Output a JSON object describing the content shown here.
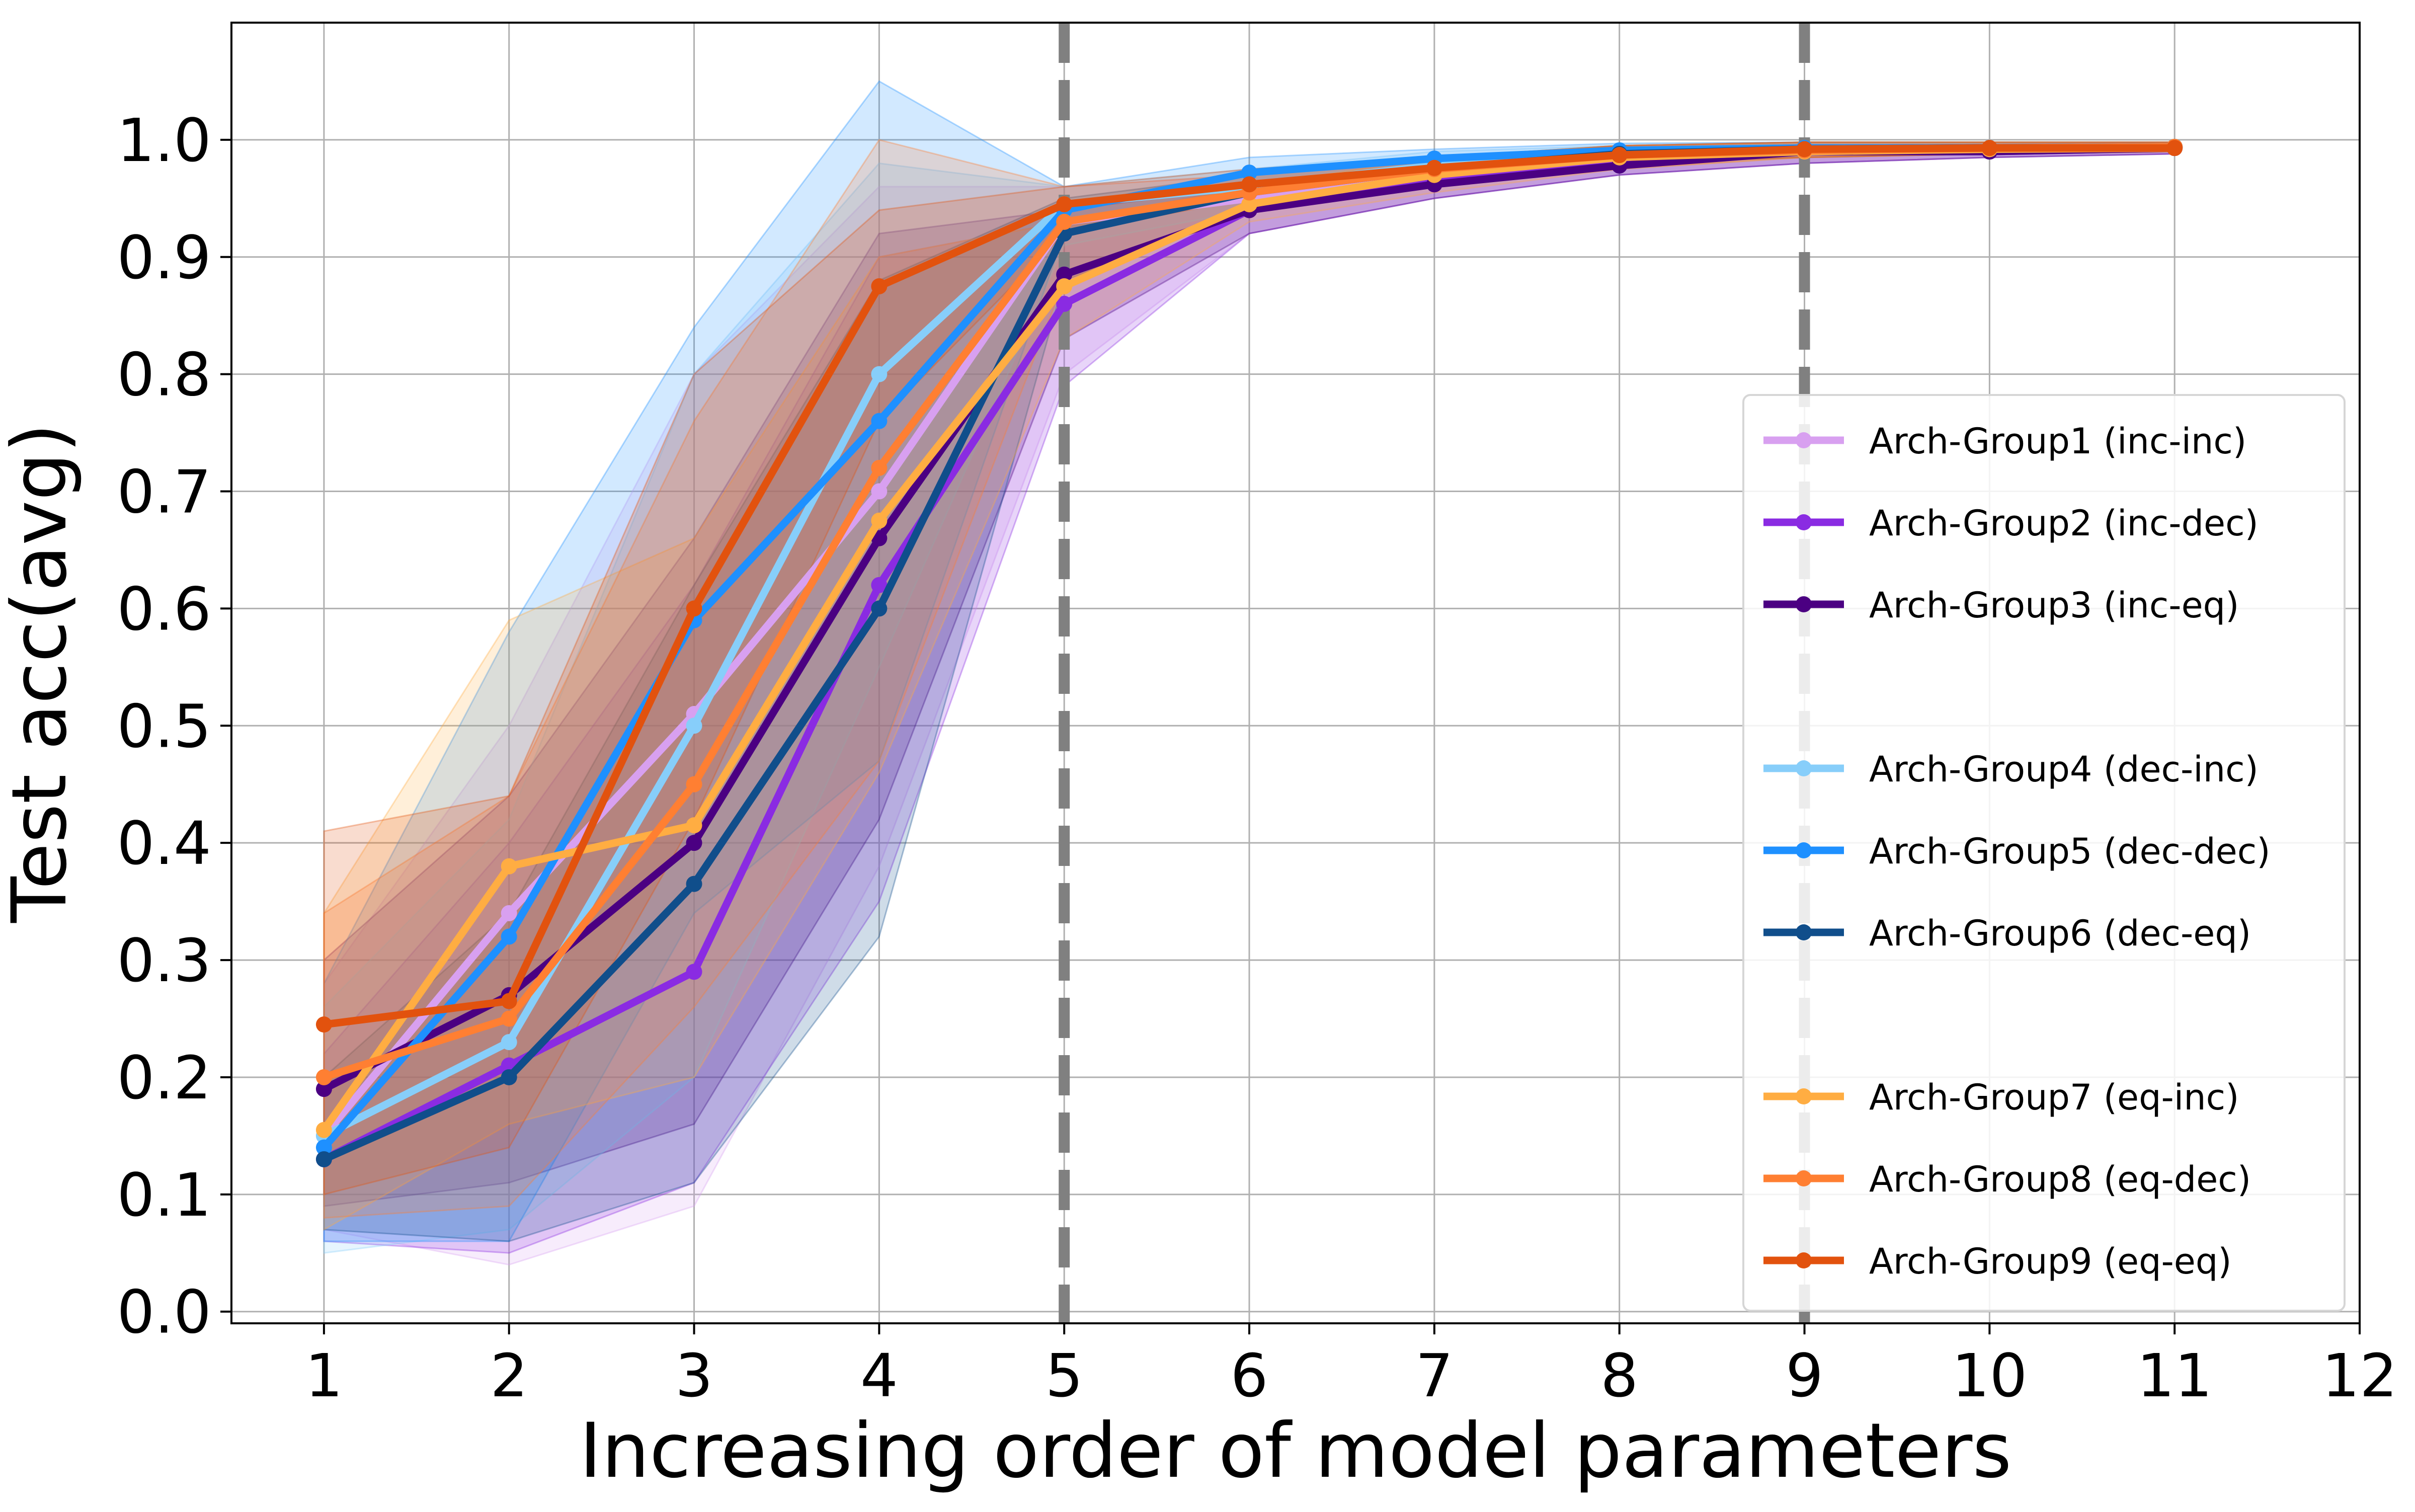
{
  "chart_data": {
    "type": "line",
    "title": "",
    "xlabel": "Increasing order of model parameters",
    "ylabel": "Test acc(avg)",
    "xlim": [
      0.5,
      12
    ],
    "ylim": [
      -0.01,
      1.1
    ],
    "xticks": [
      "1",
      "2",
      "3",
      "4",
      "5",
      "6",
      "7",
      "8",
      "9",
      "10",
      "11",
      "12"
    ],
    "yticks": [
      "0.0",
      "0.1",
      "0.2",
      "0.3",
      "0.4",
      "0.5",
      "0.6",
      "0.7",
      "0.8",
      "0.9",
      "1.0"
    ],
    "grid": true,
    "vlines": [
      5,
      9
    ],
    "legend_position": "center-right",
    "x": [
      1,
      2,
      3,
      4,
      5,
      6,
      7,
      8,
      9,
      10,
      11
    ],
    "series": [
      {
        "name": "Arch-Group1 (inc-inc)",
        "color": "#d8a0f0",
        "values": [
          0.15,
          0.34,
          0.51,
          0.7,
          0.93,
          0.95,
          0.97,
          0.985,
          0.99,
          0.992,
          0.993
        ],
        "band": [
          [
            0.07,
            0.28
          ],
          [
            0.04,
            0.5
          ],
          [
            0.09,
            0.8
          ],
          [
            0.38,
            0.96
          ],
          [
            0.8,
            0.96
          ],
          [
            0.92,
            0.97
          ],
          [
            0.95,
            0.98
          ],
          [
            0.97,
            0.995
          ],
          [
            0.98,
            0.998
          ],
          [
            0.985,
            0.998
          ],
          [
            0.988,
            0.998
          ]
        ]
      },
      {
        "name": "Arch-Group2 (inc-dec)",
        "color": "#8a2be2",
        "values": [
          0.13,
          0.21,
          0.29,
          0.62,
          0.86,
          0.94,
          0.965,
          0.98,
          0.99,
          0.99,
          0.993
        ],
        "band": [
          [
            0.06,
            0.22
          ],
          [
            0.05,
            0.4
          ],
          [
            0.11,
            0.62
          ],
          [
            0.35,
            0.9
          ],
          [
            0.79,
            0.93
          ],
          [
            0.92,
            0.96
          ],
          [
            0.95,
            0.98
          ],
          [
            0.97,
            0.99
          ],
          [
            0.98,
            0.995
          ],
          [
            0.985,
            0.996
          ],
          [
            0.988,
            0.997
          ]
        ]
      },
      {
        "name": "Arch-Group3 (inc-eq)",
        "color": "#4b0082",
        "values": [
          0.19,
          0.27,
          0.4,
          0.66,
          0.885,
          0.94,
          0.962,
          0.978,
          0.99,
          0.99,
          0.993
        ],
        "band": [
          [
            0.09,
            0.3
          ],
          [
            0.11,
            0.44
          ],
          [
            0.16,
            0.66
          ],
          [
            0.42,
            0.92
          ],
          [
            0.83,
            0.94
          ],
          [
            0.92,
            0.96
          ],
          [
            0.95,
            0.975
          ],
          [
            0.97,
            0.99
          ],
          [
            0.98,
            0.995
          ],
          [
            0.985,
            0.996
          ],
          [
            0.988,
            0.997
          ]
        ]
      },
      {
        "name": "Arch-Group4 (dec-inc)",
        "color": "#87cefa",
        "values": [
          0.15,
          0.23,
          0.5,
          0.8,
          0.945,
          0.96,
          0.978,
          0.988,
          0.992,
          0.993,
          0.994
        ],
        "band": [
          [
            0.05,
            0.26
          ],
          [
            0.07,
            0.42
          ],
          [
            0.2,
            0.8
          ],
          [
            0.55,
            0.98
          ],
          [
            0.91,
            0.96
          ],
          [
            0.94,
            0.975
          ],
          [
            0.96,
            0.99
          ],
          [
            0.975,
            0.995
          ],
          [
            0.985,
            0.998
          ],
          [
            0.988,
            0.998
          ],
          [
            0.99,
            0.998
          ]
        ]
      },
      {
        "name": "Arch-Group5 (dec-dec)",
        "color": "#1e90ff",
        "values": [
          0.14,
          0.32,
          0.59,
          0.76,
          0.94,
          0.972,
          0.984,
          0.991,
          0.993,
          0.993,
          0.994
        ],
        "band": [
          [
            0.06,
            0.28
          ],
          [
            0.06,
            0.58
          ],
          [
            0.34,
            0.84
          ],
          [
            0.47,
            1.05
          ],
          [
            0.92,
            0.96
          ],
          [
            0.96,
            0.985
          ],
          [
            0.975,
            0.992
          ],
          [
            0.985,
            0.997
          ],
          [
            0.988,
            0.998
          ],
          [
            0.99,
            0.998
          ],
          [
            0.99,
            0.998
          ]
        ]
      },
      {
        "name": "Arch-Group6 (dec-eq)",
        "color": "#104e8b",
        "values": [
          0.13,
          0.2,
          0.365,
          0.6,
          0.92,
          0.955,
          0.975,
          0.988,
          0.992,
          0.993,
          0.994
        ],
        "band": [
          [
            0.07,
            0.2
          ],
          [
            0.06,
            0.34
          ],
          [
            0.11,
            0.62
          ],
          [
            0.32,
            0.88
          ],
          [
            0.88,
            0.95
          ],
          [
            0.94,
            0.97
          ],
          [
            0.96,
            0.985
          ],
          [
            0.98,
            0.995
          ],
          [
            0.985,
            0.998
          ],
          [
            0.988,
            0.998
          ],
          [
            0.99,
            0.998
          ]
        ]
      },
      {
        "name": "Arch-Group7 (eq-inc)",
        "color": "#ffad42",
        "values": [
          0.155,
          0.38,
          0.415,
          0.675,
          0.875,
          0.945,
          0.97,
          0.985,
          0.99,
          0.992,
          0.993
        ],
        "band": [
          [
            0.07,
            0.34
          ],
          [
            0.16,
            0.59
          ],
          [
            0.2,
            0.66
          ],
          [
            0.46,
            0.9
          ],
          [
            0.83,
            0.93
          ],
          [
            0.93,
            0.96
          ],
          [
            0.955,
            0.985
          ],
          [
            0.975,
            0.995
          ],
          [
            0.985,
            0.998
          ],
          [
            0.988,
            0.998
          ],
          [
            0.99,
            0.998
          ]
        ]
      },
      {
        "name": "Arch-Group8 (eq-dec)",
        "color": "#ff7f32",
        "values": [
          0.2,
          0.25,
          0.45,
          0.72,
          0.93,
          0.955,
          0.975,
          0.987,
          0.991,
          0.993,
          0.994
        ],
        "band": [
          [
            0.08,
            0.34
          ],
          [
            0.09,
            0.44
          ],
          [
            0.26,
            0.76
          ],
          [
            0.47,
            1.0
          ],
          [
            0.88,
            0.96
          ],
          [
            0.94,
            0.97
          ],
          [
            0.96,
            0.985
          ],
          [
            0.975,
            0.995
          ],
          [
            0.985,
            0.998
          ],
          [
            0.988,
            0.998
          ],
          [
            0.99,
            0.998
          ]
        ]
      },
      {
        "name": "Arch-Group9 (eq-eq)",
        "color": "#e2520e",
        "values": [
          0.245,
          0.265,
          0.6,
          0.875,
          0.945,
          0.962,
          0.976,
          0.987,
          0.992,
          0.993,
          0.993
        ],
        "band": [
          [
            0.1,
            0.41
          ],
          [
            0.14,
            0.44
          ],
          [
            0.42,
            0.8
          ],
          [
            0.76,
            0.94
          ],
          [
            0.92,
            0.96
          ],
          [
            0.95,
            0.975
          ],
          [
            0.965,
            0.985
          ],
          [
            0.98,
            0.995
          ],
          [
            0.985,
            0.998
          ],
          [
            0.988,
            0.998
          ],
          [
            0.99,
            0.998
          ]
        ]
      }
    ]
  }
}
